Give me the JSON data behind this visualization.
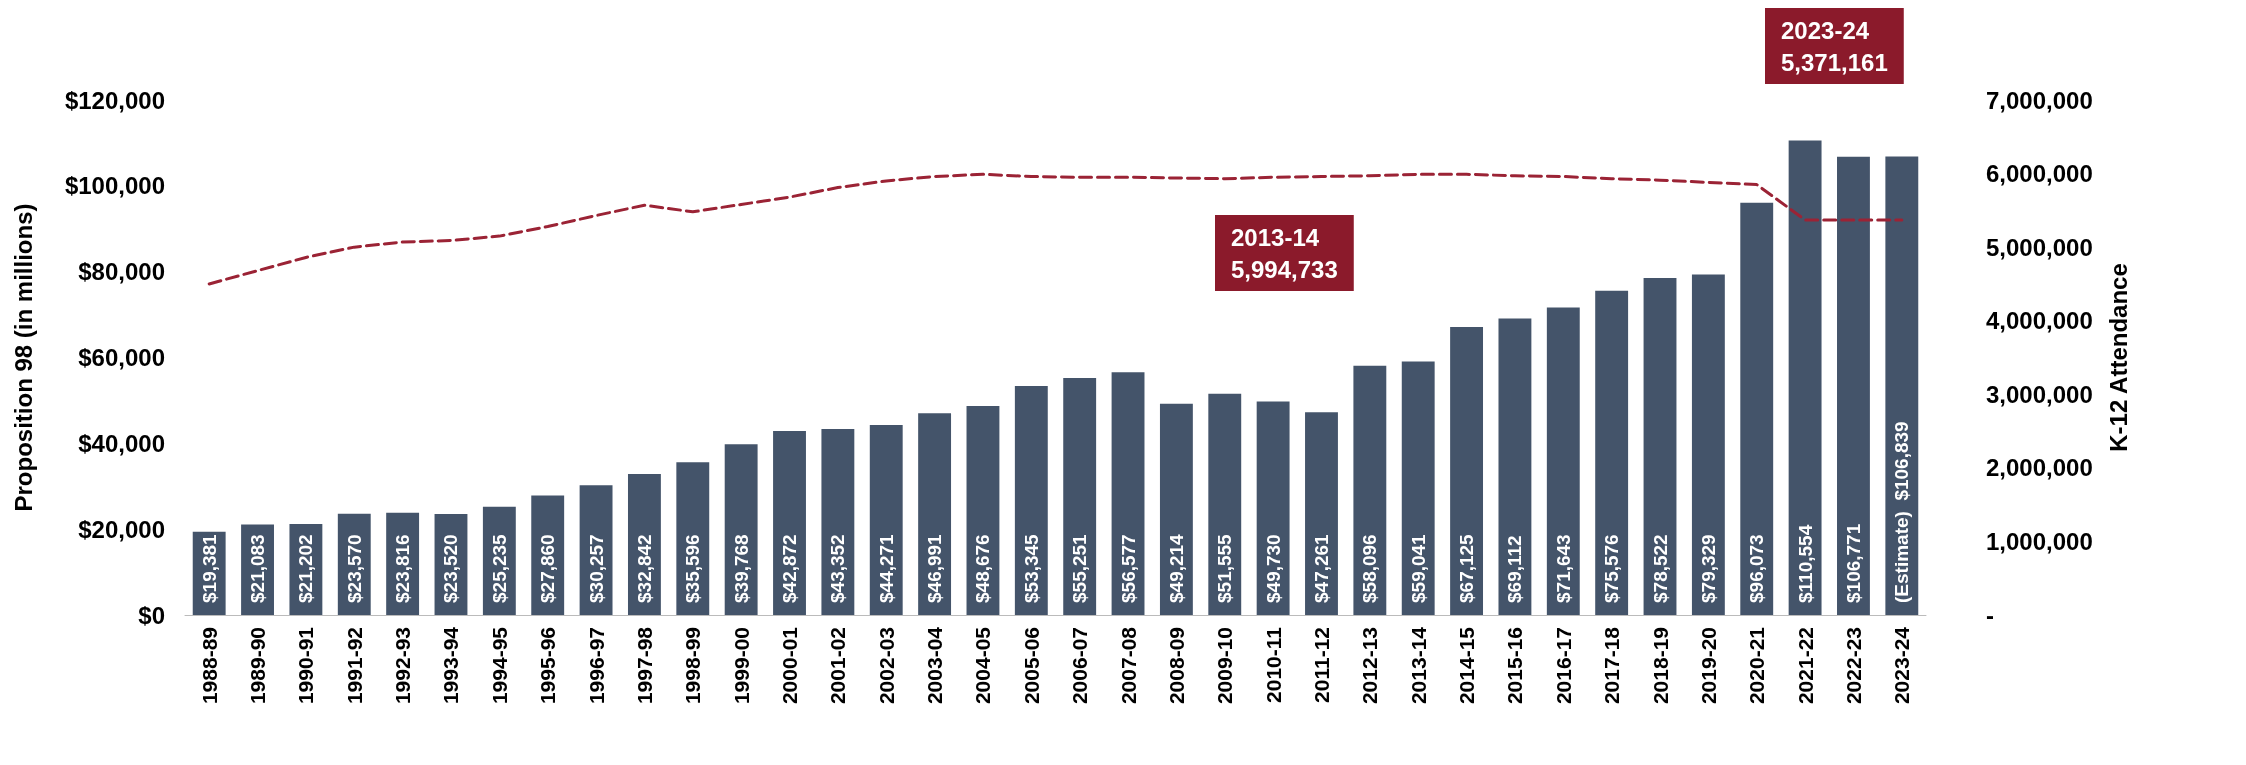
{
  "chart_data": {
    "type": "bar",
    "ylabel": "Proposition 98 (in millions)",
    "y2label": "K-12 Attendance",
    "categories": [
      "1988-89",
      "1989-90",
      "1990-91",
      "1991-92",
      "1992-93",
      "1993-94",
      "1994-95",
      "1995-96",
      "1996-97",
      "1997-98",
      "1998-99",
      "1999-00",
      "2000-01",
      "2001-02",
      "2002-03",
      "2003-04",
      "2004-05",
      "2005-06",
      "2006-07",
      "2007-08",
      "2008-09",
      "2009-10",
      "2010-11",
      "2011-12",
      "2012-13",
      "2013-14",
      "2014-15",
      "2015-16",
      "2016-17",
      "2017-18",
      "2018-19",
      "2019-20",
      "2020-21",
      "2021-22",
      "2022-23",
      "2023-24"
    ],
    "series": [
      {
        "color": "#44546a",
        "values": [
          19381,
          21083,
          21202,
          23570,
          23816,
          23520,
          25235,
          27860,
          30257,
          32842,
          35596,
          39768,
          42872,
          43352,
          44271,
          46991,
          48676,
          53345,
          55251,
          56577,
          49214,
          51555,
          49730,
          47261,
          58096,
          59041,
          67125,
          69112,
          71643,
          75576,
          78522,
          79329,
          96073,
          110554,
          106771,
          106839
        ],
        "value_labels": [
          "$19,381",
          "$21,083",
          "$21,202",
          "$23,570",
          "$23,816",
          "$23,520",
          "$25,235",
          "$27,860",
          "$30,257",
          "$32,842",
          "$35,596",
          "$39,768",
          "$42,872",
          "$43,352",
          "$44,271",
          "$46,991",
          "$48,676",
          "$53,345",
          "$55,251",
          "$56,577",
          "$49,214",
          "$51,555",
          "$49,730",
          "$47,261",
          "$58,096",
          "$59,041",
          "$67,125",
          "$69,112",
          "$71,643",
          "$75,576",
          "$78,522",
          "$79,329",
          "$96,073",
          "$110,554",
          "$106,771",
          "(Estimate)  $106,839"
        ]
      },
      {
        "type": "line",
        "axis": "y2",
        "color": "#9b2335",
        "line_style": "dashed",
        "marker": "none",
        "values": [
          4500000,
          4680000,
          4860000,
          5000000,
          5070000,
          5090000,
          5150000,
          5280000,
          5430000,
          5570000,
          5480000,
          5580000,
          5680000,
          5810000,
          5900000,
          5960000,
          5990000,
          5960000,
          5950000,
          5950000,
          5940000,
          5930000,
          5950000,
          5960000,
          5970000,
          5990000,
          5990000,
          5970000,
          5960000,
          5930000,
          5910000,
          5880000,
          5850000,
          5370000,
          5370000,
          5370000
        ]
      }
    ],
    "ylim": [
      0,
      120000
    ],
    "yticks": [
      {
        "value": 0,
        "label": "$0"
      },
      {
        "value": 20000,
        "label": "$20,000"
      },
      {
        "value": 40000,
        "label": "$40,000"
      },
      {
        "value": 60000,
        "label": "$60,000"
      },
      {
        "value": 80000,
        "label": "$80,000"
      },
      {
        "value": 100000,
        "label": "$100,000"
      },
      {
        "value": 120000,
        "label": "$120,000"
      }
    ],
    "y2lim": [
      0,
      7000000
    ],
    "y2ticks": [
      {
        "value": 0,
        "label": "-"
      },
      {
        "value": 1000000,
        "label": "1,000,000"
      },
      {
        "value": 2000000,
        "label": "2,000,000"
      },
      {
        "value": 3000000,
        "label": "3,000,000"
      },
      {
        "value": 4000000,
        "label": "4,000,000"
      },
      {
        "value": 5000000,
        "label": "5,000,000"
      },
      {
        "value": 6000000,
        "label": "6,000,000"
      },
      {
        "value": 7000000,
        "label": "7,000,000"
      }
    ],
    "annotations": [
      "2013-14\n5,994,733",
      "2023-24\n5,371,161"
    ],
    "grid": false
  }
}
